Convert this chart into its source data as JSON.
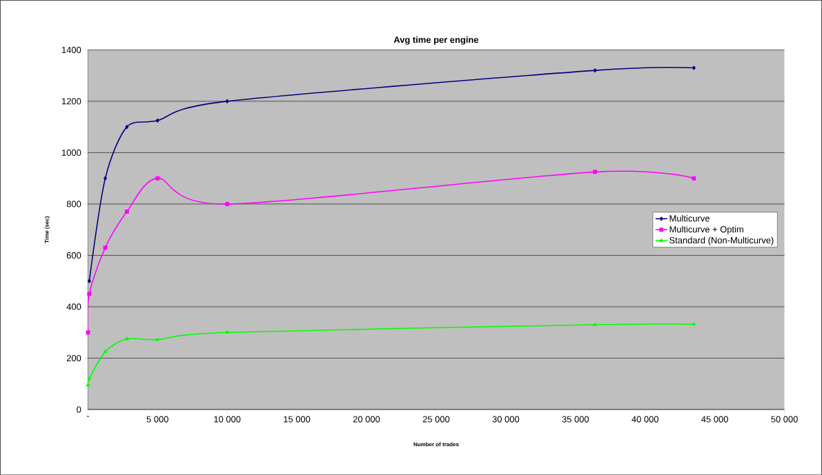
{
  "chart_data": {
    "type": "line",
    "title": "Avg time per engine",
    "xlabel": "Number of trades",
    "ylabel": "Time (sec)",
    "x": [
      10,
      100,
      1250,
      2800,
      5000,
      10000,
      36400,
      43500
    ],
    "xlim": [
      0,
      50000
    ],
    "xticks": [
      {
        "value": 0,
        "label": "-"
      },
      {
        "value": 5000,
        "label": "5 000"
      },
      {
        "value": 10000,
        "label": "10 000"
      },
      {
        "value": 15000,
        "label": "15 000"
      },
      {
        "value": 20000,
        "label": "20 000"
      },
      {
        "value": 25000,
        "label": "25 000"
      },
      {
        "value": 30000,
        "label": "30 000"
      },
      {
        "value": 35000,
        "label": "35 000"
      },
      {
        "value": 40000,
        "label": "40 000"
      },
      {
        "value": 45000,
        "label": "45 000"
      },
      {
        "value": 50000,
        "label": "50 000"
      }
    ],
    "ylim": [
      0,
      1400
    ],
    "yticks": [
      0,
      200,
      400,
      600,
      800,
      1000,
      1200,
      1400
    ],
    "grid": "y",
    "legend": "right",
    "series": [
      {
        "name": "Multicurve",
        "color": "#000080",
        "marker": "diamond",
        "values": [
          null,
          500,
          900,
          1100,
          1125,
          1200,
          1320,
          1330
        ]
      },
      {
        "name": "Multicurve + Optim",
        "color": "#ff00ff",
        "marker": "square",
        "values": [
          300,
          450,
          630,
          770,
          900,
          800,
          925,
          900
        ]
      },
      {
        "name": "Standard (Non-Multicurve)",
        "color": "#00ff00",
        "marker": "triangle",
        "values": [
          95,
          120,
          225,
          275,
          272,
          300,
          330,
          332
        ]
      }
    ]
  }
}
